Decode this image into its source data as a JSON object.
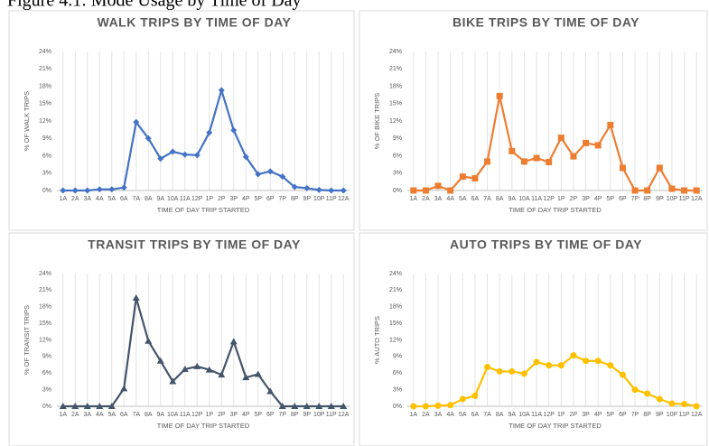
{
  "figure_title": "Figure 4.1: Mode Usage by Time of Day",
  "chart_data": [
    {
      "type": "line",
      "title": "WALK TRIPS BY TIME OF DAY",
      "x_label": "TIME OF DAY TRIP STARTED",
      "y_label": "% OF WALK TRIPS",
      "categories": [
        "1A",
        "2A",
        "3A",
        "4A",
        "5A",
        "6A",
        "7A",
        "8A",
        "9A",
        "10A",
        "11A",
        "12P",
        "1P",
        "2P",
        "3P",
        "4P",
        "5P",
        "6P",
        "7P",
        "8P",
        "9P",
        "10P",
        "11P",
        "12A"
      ],
      "series": [
        {
          "name": "Walk",
          "color": "#4472c4",
          "marker": "diamond",
          "values": [
            0,
            0,
            0,
            0.2,
            0.2,
            0.5,
            11.8,
            9,
            5.5,
            6.7,
            6.2,
            6.1,
            10,
            17.3,
            10.4,
            5.8,
            2.8,
            3.3,
            2.4,
            0.6,
            0.4,
            0.1,
            0,
            0
          ]
        }
      ],
      "ylim": [
        0,
        24
      ],
      "yticks": [
        {
          "value": 0,
          "label": "0%"
        },
        {
          "value": 3,
          "label": "3%"
        },
        {
          "value": 6,
          "label": "6%"
        },
        {
          "value": 9,
          "label": "9%"
        },
        {
          "value": 12,
          "label": "12%"
        },
        {
          "value": 15,
          "label": "15%"
        },
        {
          "value": 18,
          "label": "18%"
        },
        {
          "value": 21,
          "label": "21%"
        },
        {
          "value": 24,
          "label": "24%"
        }
      ],
      "grid": true
    },
    {
      "type": "line",
      "title": "BIKE TRIPS BY TIME OF DAY",
      "x_label": "TIME OF DAY TRIP STARTED",
      "y_label": "% OF BIKE TRIPS",
      "categories": [
        "1A",
        "2A",
        "3A",
        "4A",
        "5A",
        "6A",
        "7A",
        "8A",
        "9A",
        "10A",
        "11A",
        "12P",
        "1P",
        "2P",
        "3P",
        "4P",
        "5P",
        "6P",
        "7P",
        "8P",
        "9P",
        "10P",
        "11P",
        "12A"
      ],
      "series": [
        {
          "name": "Bike",
          "color": "#ed7d31",
          "marker": "square",
          "values": [
            0,
            0,
            0.8,
            0,
            2.4,
            2.1,
            5,
            16.3,
            6.8,
            5,
            5.6,
            4.9,
            9.1,
            5.9,
            8.2,
            7.8,
            11.3,
            3.9,
            0,
            0,
            3.9,
            0.3,
            0,
            0
          ]
        }
      ],
      "ylim": [
        0,
        24
      ],
      "yticks": [
        {
          "value": 0,
          "label": "0%"
        },
        {
          "value": 3,
          "label": "3%"
        },
        {
          "value": 6,
          "label": "6%"
        },
        {
          "value": 9,
          "label": "9%"
        },
        {
          "value": 12,
          "label": "12%"
        },
        {
          "value": 15,
          "label": "15%"
        },
        {
          "value": 18,
          "label": "18%"
        },
        {
          "value": 21,
          "label": "21%"
        },
        {
          "value": 24,
          "label": "24%"
        }
      ],
      "grid": true
    },
    {
      "type": "line",
      "title": "TRANSIT TRIPS BY TIME OF DAY",
      "x_label": "TIME OF DAY TRIP STARTED",
      "y_label": "% OF TRANSIT TRIPS",
      "categories": [
        "1A",
        "2A",
        "3A",
        "4A",
        "5A",
        "6A",
        "7A",
        "8A",
        "9A",
        "10A",
        "11A",
        "12P",
        "1P",
        "2P",
        "3P",
        "4P",
        "5P",
        "6P",
        "7P",
        "8P",
        "9P",
        "10P",
        "11P",
        "12A"
      ],
      "series": [
        {
          "name": "Transit",
          "color": "#44546a",
          "marker": "triangle",
          "values": [
            0,
            0,
            0,
            0,
            0,
            3.2,
            19.6,
            11.8,
            8.2,
            4.5,
            6.7,
            7.2,
            6.6,
            5.7,
            11.7,
            5.2,
            5.8,
            2.7,
            0,
            0,
            0,
            0,
            0,
            0
          ]
        }
      ],
      "ylim": [
        0,
        24
      ],
      "yticks": [
        {
          "value": 0,
          "label": "0%"
        },
        {
          "value": 3,
          "label": "3%"
        },
        {
          "value": 6,
          "label": "6%"
        },
        {
          "value": 9,
          "label": "9%"
        },
        {
          "value": 12,
          "label": "12%"
        },
        {
          "value": 15,
          "label": "15%"
        },
        {
          "value": 18,
          "label": "18%"
        },
        {
          "value": 21,
          "label": "21%"
        },
        {
          "value": 24,
          "label": "24%"
        }
      ],
      "grid": true
    },
    {
      "type": "line",
      "title": "AUTO TRIPS BY TIME OF DAY",
      "x_label": "TIME OF DAY TRIP STARTED",
      "y_label": "% AUTO TRIPS",
      "categories": [
        "1A",
        "2A",
        "3A",
        "4A",
        "5A",
        "6A",
        "7A",
        "8A",
        "9A",
        "10A",
        "11A",
        "12P",
        "1P",
        "2P",
        "3P",
        "4P",
        "5P",
        "6P",
        "7P",
        "8P",
        "9P",
        "10P",
        "11P",
        "12A"
      ],
      "series": [
        {
          "name": "Auto",
          "color": "#ffc000",
          "marker": "circle",
          "values": [
            0,
            0,
            0.1,
            0.2,
            1.3,
            1.9,
            7.1,
            6.3,
            6.3,
            5.9,
            8,
            7.4,
            7.4,
            9.2,
            8.2,
            8.2,
            7.4,
            5.7,
            3,
            2.3,
            1.3,
            0.5,
            0.4,
            0
          ]
        }
      ],
      "ylim": [
        0,
        24
      ],
      "yticks": [
        {
          "value": 0,
          "label": "0%"
        },
        {
          "value": 3,
          "label": "3%"
        },
        {
          "value": 6,
          "label": "6%"
        },
        {
          "value": 9,
          "label": "9%"
        },
        {
          "value": 12,
          "label": "12%"
        },
        {
          "value": 15,
          "label": "15%"
        },
        {
          "value": 18,
          "label": "18%"
        },
        {
          "value": 21,
          "label": "21%"
        },
        {
          "value": 24,
          "label": "24%"
        }
      ],
      "grid": true
    }
  ]
}
